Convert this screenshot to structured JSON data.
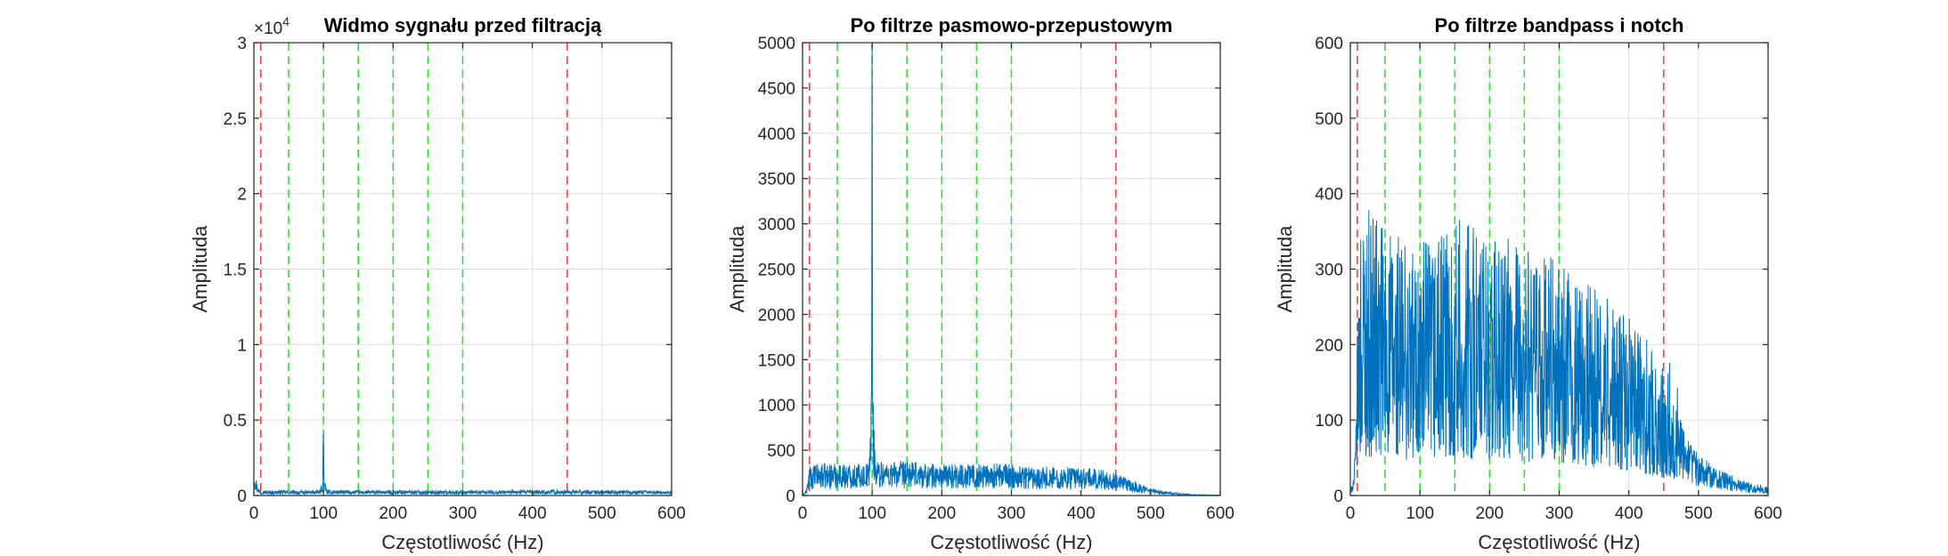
{
  "chart_data": [
    {
      "type": "line",
      "title": "Widmo sygnału przed filtracją",
      "xlabel": "Częstotliwość (Hz)",
      "ylabel": "Amplituda",
      "xlim": [
        0,
        600
      ],
      "ylim": [
        0,
        30000
      ],
      "xticks": [
        0,
        100,
        200,
        300,
        400,
        500,
        600
      ],
      "xtick_labels": [
        "0",
        "100",
        "200",
        "300",
        "400",
        "500",
        "600"
      ],
      "yticks": [
        0,
        5000,
        10000,
        15000,
        20000,
        25000,
        30000
      ],
      "ytick_labels": [
        "0",
        "0.5",
        "1",
        "1.5",
        "2",
        "2.5",
        "3"
      ],
      "y_exponent_label": "×10",
      "y_exponent_power": "4",
      "grid": true,
      "vlines_red": [
        10,
        450
      ],
      "vlines_green": [
        50,
        100,
        150,
        200,
        250,
        300
      ],
      "series": [
        {
          "x": [
            0,
            2,
            5,
            8,
            10,
            15,
            20,
            40,
            60,
            80,
            95,
            99,
            100,
            101,
            105,
            150,
            200,
            250,
            300,
            350,
            400,
            450,
            500,
            550,
            600
          ],
          "y": [
            1700,
            1100,
            500,
            300,
            250,
            260,
            240,
            250,
            230,
            240,
            260,
            800,
            4600,
            800,
            260,
            240,
            250,
            240,
            240,
            250,
            260,
            270,
            250,
            240,
            230
          ]
        }
      ]
    },
    {
      "type": "line",
      "title": "Po filtrze pasmowo-przepustowym",
      "xlabel": "Częstotliwość (Hz)",
      "ylabel": "Amplituda",
      "xlim": [
        0,
        600
      ],
      "ylim": [
        0,
        5000
      ],
      "xticks": [
        0,
        100,
        200,
        300,
        400,
        500,
        600
      ],
      "xtick_labels": [
        "0",
        "100",
        "200",
        "300",
        "400",
        "500",
        "600"
      ],
      "yticks": [
        0,
        500,
        1000,
        1500,
        2000,
        2500,
        3000,
        3500,
        4000,
        4500,
        5000
      ],
      "ytick_labels": [
        "0",
        "500",
        "1000",
        "1500",
        "2000",
        "2500",
        "3000",
        "3500",
        "4000",
        "4500",
        "5000"
      ],
      "grid": true,
      "vlines_red": [
        10,
        450
      ],
      "vlines_green": [
        50,
        100,
        150,
        200,
        250,
        300
      ],
      "series": [
        {
          "x": [
            0,
            5,
            8,
            10,
            20,
            50,
            80,
            95,
            99,
            100,
            101,
            105,
            150,
            200,
            250,
            300,
            350,
            400,
            430,
            450,
            470,
            500,
            530,
            560,
            600
          ],
          "y": [
            5,
            40,
            130,
            230,
            250,
            260,
            250,
            260,
            900,
            4650,
            900,
            280,
            270,
            250,
            260,
            250,
            230,
            220,
            210,
            180,
            120,
            60,
            25,
            8,
            3
          ]
        }
      ]
    },
    {
      "type": "line",
      "title": "Po filtrze bandpass i notch",
      "xlabel": "Częstotliwość (Hz)",
      "ylabel": "Amplituda",
      "xlim": [
        0,
        600
      ],
      "ylim": [
        0,
        600
      ],
      "xticks": [
        0,
        100,
        200,
        300,
        400,
        500,
        600
      ],
      "xtick_labels": [
        "0",
        "100",
        "200",
        "300",
        "400",
        "500",
        "600"
      ],
      "yticks": [
        0,
        100,
        200,
        300,
        400,
        500,
        600
      ],
      "ytick_labels": [
        "0",
        "100",
        "200",
        "300",
        "400",
        "500",
        "600"
      ],
      "grid": true,
      "vlines_red": [
        10,
        450
      ],
      "vlines_green": [
        50,
        100,
        150,
        200,
        250,
        300
      ],
      "series": [
        {
          "x": [
            0,
            5,
            8,
            10,
            15,
            50,
            100,
            150,
            200,
            250,
            300,
            350,
            400,
            430,
            450,
            460,
            470,
            480,
            500,
            530,
            560,
            600
          ],
          "y": [
            5,
            20,
            60,
            150,
            210,
            200,
            180,
            200,
            190,
            180,
            170,
            150,
            130,
            110,
            90,
            100,
            80,
            60,
            40,
            25,
            15,
            8
          ]
        }
      ]
    }
  ]
}
